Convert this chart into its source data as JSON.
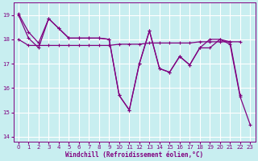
{
  "background_color": "#c8eef0",
  "grid_color": "#ffffff",
  "line_color": "#800080",
  "x_values": [
    0,
    1,
    2,
    3,
    4,
    5,
    6,
    7,
    8,
    9,
    10,
    11,
    12,
    13,
    14,
    15,
    16,
    17,
    18,
    19,
    20,
    21,
    22,
    23
  ],
  "line_flat": [
    18.0,
    17.75,
    17.75,
    17.75,
    17.75,
    17.75,
    17.75,
    17.75,
    17.75,
    17.75,
    17.8,
    17.8,
    17.8,
    17.85,
    17.85,
    17.85,
    17.85,
    17.85,
    17.9,
    17.9,
    17.9,
    17.9,
    17.9,
    null
  ],
  "line_zigzag": [
    19.0,
    18.05,
    17.65,
    18.85,
    18.45,
    18.05,
    18.05,
    18.05,
    18.05,
    18.0,
    15.7,
    15.1,
    17.0,
    18.35,
    16.8,
    16.65,
    17.3,
    16.95,
    17.65,
    17.65,
    18.0,
    17.9,
    15.7,
    null
  ],
  "line_diagonal": [
    19.05,
    18.3,
    17.85,
    18.85,
    18.45,
    18.05,
    18.05,
    18.05,
    18.05,
    18.0,
    15.7,
    15.1,
    17.0,
    18.35,
    16.8,
    16.65,
    17.3,
    16.95,
    17.65,
    18.0,
    18.0,
    17.8,
    15.65,
    14.5
  ],
  "ylim": [
    13.8,
    19.5
  ],
  "yticks": [
    14,
    15,
    16,
    17,
    18,
    19
  ],
  "xlim": [
    -0.5,
    23.5
  ],
  "xticks": [
    0,
    1,
    2,
    3,
    4,
    5,
    6,
    7,
    8,
    9,
    10,
    11,
    12,
    13,
    14,
    15,
    16,
    17,
    18,
    19,
    20,
    21,
    22,
    23
  ],
  "xlabel": "Windchill (Refroidissement éolien,°C)"
}
